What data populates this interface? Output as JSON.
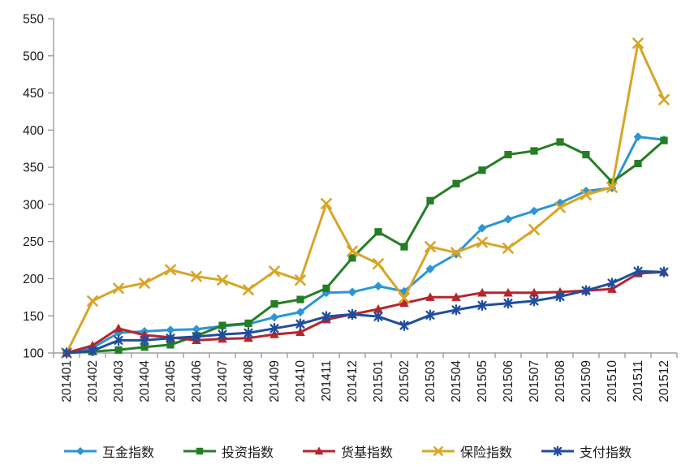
{
  "chart_data": {
    "type": "line",
    "title": "",
    "xlabel": "",
    "ylabel": "",
    "ylim": [
      100,
      550
    ],
    "ytick_step": 50,
    "grid": false,
    "legend_position": "bottom",
    "axis_color": "#9d9d9d",
    "label_color": "#1a1a1a",
    "categories": [
      "201401",
      "201402",
      "201403",
      "201404",
      "201405",
      "201406",
      "201407",
      "201408",
      "201409",
      "201410",
      "201411",
      "201412",
      "201501",
      "201502",
      "201503",
      "201504",
      "201505",
      "201506",
      "201507",
      "201508",
      "201509",
      "201510",
      "201511",
      "201512"
    ],
    "series": [
      {
        "name": "互金指数",
        "marker": "diamond",
        "color": "#2B96D3",
        "values": [
          100,
          107,
          127,
          129,
          131,
          132,
          136,
          139,
          148,
          155,
          181,
          182,
          190,
          183,
          213,
          233,
          268,
          280,
          291,
          302,
          318,
          322,
          391,
          387
        ]
      },
      {
        "name": "投资指数",
        "marker": "square",
        "color": "#257E24",
        "values": [
          100,
          102,
          104,
          108,
          111,
          123,
          137,
          140,
          166,
          172,
          187,
          228,
          263,
          243,
          305,
          328,
          346,
          367,
          372,
          384,
          367,
          330,
          355,
          386
        ]
      },
      {
        "name": "货基指数",
        "marker": "triangle",
        "color": "#B6252D",
        "values": [
          100,
          110,
          133,
          124,
          121,
          117,
          119,
          120,
          125,
          128,
          145,
          152,
          159,
          167,
          175,
          175,
          181,
          181,
          181,
          182,
          184,
          186,
          207,
          209
        ]
      },
      {
        "name": "保险指数",
        "marker": "x",
        "color": "#D8A527",
        "values": [
          100,
          170,
          187,
          194,
          212,
          203,
          198,
          185,
          210,
          198,
          301,
          237,
          220,
          174,
          243,
          235,
          249,
          241,
          266,
          296,
          313,
          323,
          517,
          441
        ]
      },
      {
        "name": "支付指数",
        "marker": "asterisk",
        "color": "#1F4E9F",
        "values": [
          100,
          103,
          117,
          117,
          120,
          122,
          125,
          127,
          133,
          139,
          149,
          152,
          149,
          137,
          151,
          158,
          164,
          167,
          170,
          176,
          184,
          194,
          210,
          209
        ]
      }
    ]
  }
}
